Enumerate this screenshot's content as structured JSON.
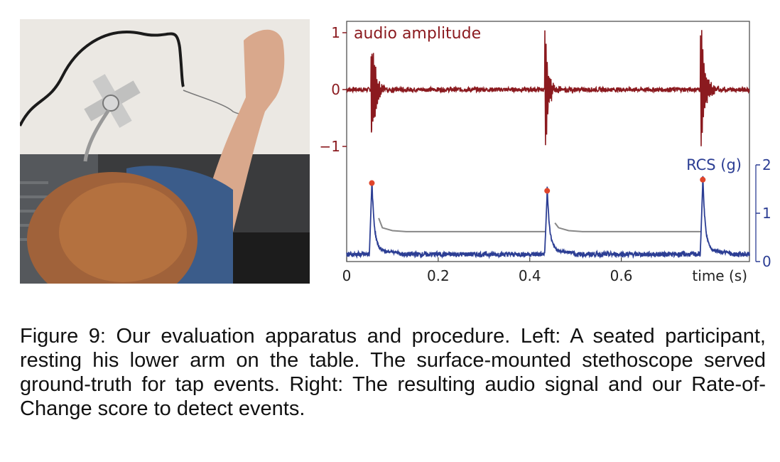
{
  "figure": {
    "caption": "Figure 9: Our evaluation apparatus and procedure. Left: A seated participant, resting his lower arm on the table. The surface-mounted stethoscope served ground-truth for tap events. Right: The resulting audio signal and our Rate-of-Change score to detect events."
  },
  "colors": {
    "audio": "#8b1a1f",
    "rcs": "#2c3e94",
    "threshold": "#888888",
    "peak": "#e0452b"
  },
  "chart_data": {
    "type": "line",
    "xlabel": "time (s)",
    "xlim": [
      0,
      0.88
    ],
    "x_ticks": [
      "0",
      "0.2",
      "0.4",
      "0.6"
    ],
    "audio": {
      "label": "audio amplitude",
      "ylim": [
        -1.2,
        1.2
      ],
      "y_ticks": [
        "1",
        "0",
        "−1"
      ],
      "taps": [
        0.055,
        0.435,
        0.775
      ]
    },
    "rcs": {
      "label": "RCS (g)",
      "ylim": [
        0,
        2
      ],
      "y_ticks": [
        "2",
        "1",
        "0"
      ],
      "peaks": [
        {
          "x": 0.055,
          "y": 1.58
        },
        {
          "x": 0.438,
          "y": 1.42
        },
        {
          "x": 0.778,
          "y": 1.65
        }
      ],
      "threshold_segments": [
        {
          "start": 0.07,
          "start_y": 0.9,
          "level": 0.62,
          "end": 0.435
        },
        {
          "start": 0.455,
          "start_y": 0.8,
          "level": 0.62,
          "end": 0.775
        }
      ]
    }
  }
}
